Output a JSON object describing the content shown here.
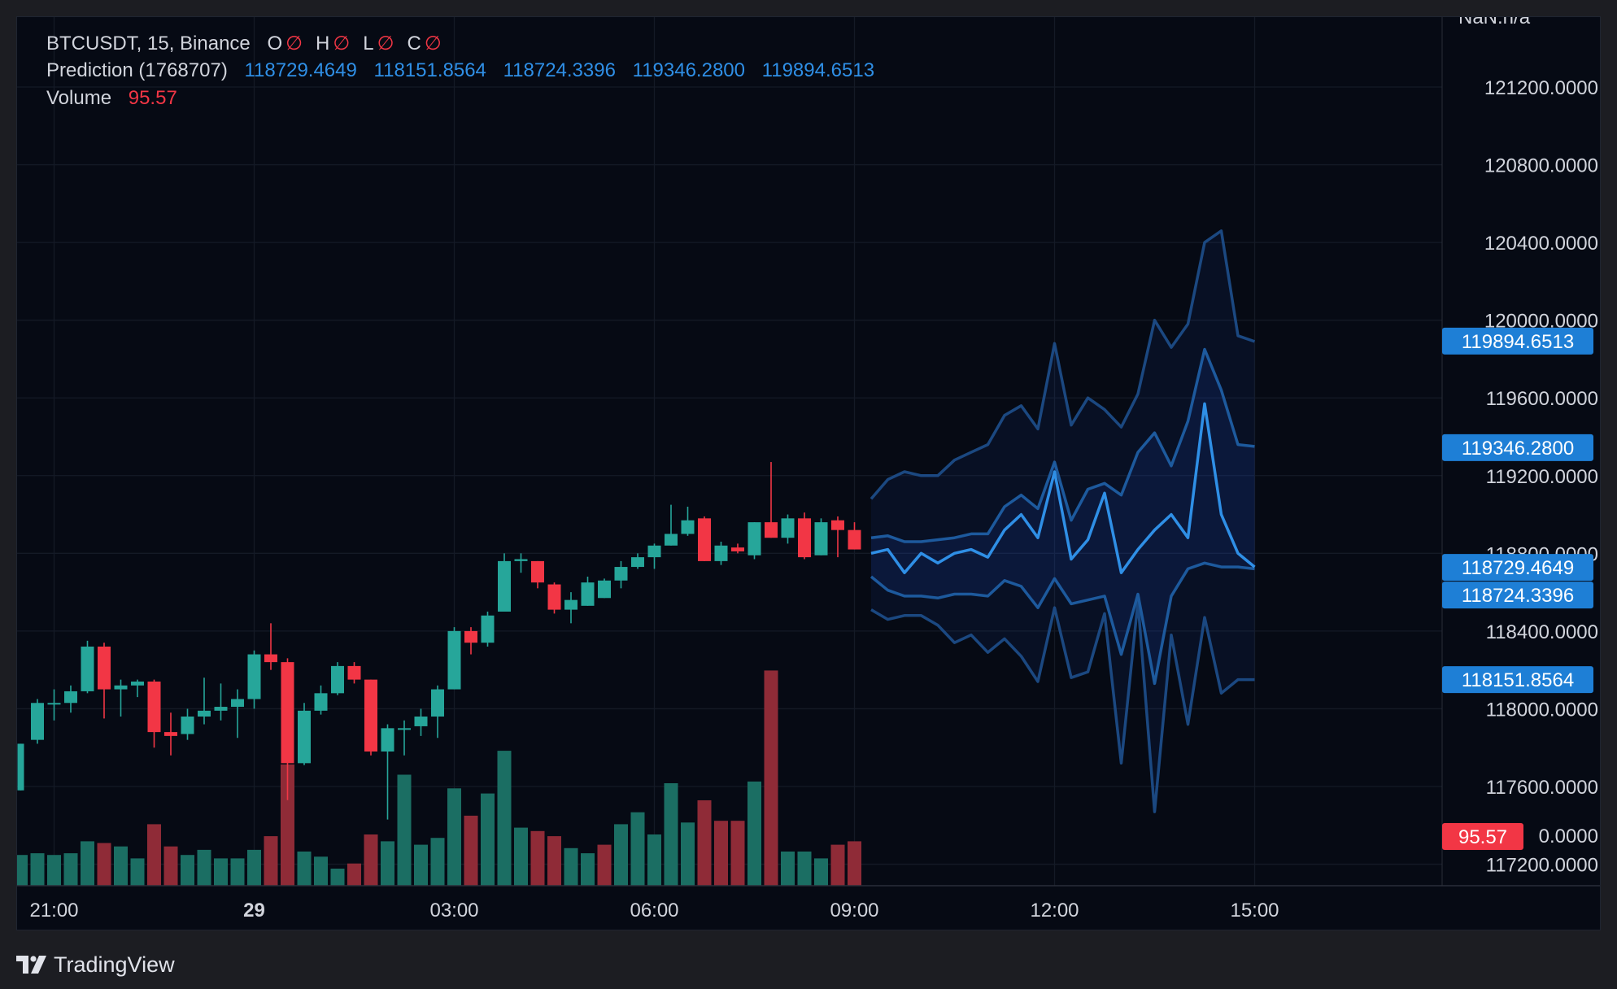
{
  "legend": {
    "symbol_line": "BTCUSDT, 15, Binance",
    "ohlc": [
      {
        "k": "O",
        "v": "∅"
      },
      {
        "k": "H",
        "v": "∅"
      },
      {
        "k": "L",
        "v": "∅"
      },
      {
        "k": "C",
        "v": "∅"
      }
    ],
    "prediction_label": "Prediction (1768707)",
    "prediction_values": [
      "118729.4649",
      "118151.8564",
      "118724.3396",
      "119346.2800",
      "119894.6513"
    ],
    "volume_label": "Volume",
    "volume_value": "95.57"
  },
  "brand": {
    "name": "TradingView"
  },
  "colors": {
    "up": "#26a69a",
    "down": "#f23645",
    "up_vol": "#1b6e63",
    "down_vol": "#8f2b37",
    "prediction": "#2f8fe6",
    "band": "#2962ff",
    "background": "#060a14"
  },
  "chart_data": {
    "type": "candlestick",
    "y_axis": {
      "ticks": [
        121200,
        120800,
        120400,
        120000,
        119600,
        119200,
        118800,
        118400,
        118000,
        117600,
        117200
      ],
      "tick_labels": [
        "121200.0000",
        "120800.0000",
        "120400.0000",
        "120000.0000",
        "119600.0000",
        "119200.0000",
        "118800.0000",
        "118400.0000",
        "118000.0000",
        "117600.0000",
        "117200.0000"
      ],
      "top_partial_label": "NaN.n/a",
      "volume_partial_label": "0.0000",
      "range": [
        116880,
        121560
      ]
    },
    "x_axis": {
      "ticks": [
        {
          "label": "21:00",
          "bar": 2
        },
        {
          "label": "29",
          "bar": 14
        },
        {
          "label": "03:00",
          "bar": 26
        },
        {
          "label": "06:00",
          "bar": 38
        },
        {
          "label": "09:00",
          "bar": 50
        },
        {
          "label": "12:00",
          "bar": 62
        },
        {
          "label": "15:00",
          "bar": 74
        }
      ]
    },
    "price_badges": [
      {
        "label": "119894.6513",
        "value": 119894.6513,
        "color": "#1e7fd6"
      },
      {
        "label": "119346.2800",
        "value": 119346.28,
        "color": "#1e7fd6"
      },
      {
        "label": "118729.4649",
        "value": 118729.4649,
        "color": "#1e7fd6"
      },
      {
        "label": "118724.3396",
        "value": 118724.3396,
        "color": "#1e7fd6"
      },
      {
        "label": "118151.8564",
        "value": 118151.8564,
        "color": "#1e7fd6"
      }
    ],
    "volume_badge": {
      "label": "95.57",
      "color": "#f23645"
    },
    "candles": [
      {
        "o": 117580,
        "h": 117820,
        "l": 117580,
        "c": 117820
      },
      {
        "o": 117840,
        "h": 118050,
        "l": 117820,
        "c": 118030
      },
      {
        "o": 118030,
        "h": 118100,
        "l": 117940,
        "c": 118030
      },
      {
        "o": 118030,
        "h": 118120,
        "l": 117980,
        "c": 118090
      },
      {
        "o": 118090,
        "h": 118350,
        "l": 118080,
        "c": 118320
      },
      {
        "o": 118320,
        "h": 118340,
        "l": 117950,
        "c": 118100
      },
      {
        "o": 118100,
        "h": 118150,
        "l": 117960,
        "c": 118120
      },
      {
        "o": 118120,
        "h": 118150,
        "l": 118060,
        "c": 118140
      },
      {
        "o": 118140,
        "h": 118150,
        "l": 117800,
        "c": 117880
      },
      {
        "o": 117880,
        "h": 117980,
        "l": 117760,
        "c": 117860
      },
      {
        "o": 117870,
        "h": 118000,
        "l": 117840,
        "c": 117960
      },
      {
        "o": 117960,
        "h": 118160,
        "l": 117920,
        "c": 117990
      },
      {
        "o": 117990,
        "h": 118130,
        "l": 117940,
        "c": 118010
      },
      {
        "o": 118010,
        "h": 118100,
        "l": 117850,
        "c": 118050
      },
      {
        "o": 118050,
        "h": 118300,
        "l": 118000,
        "c": 118280
      },
      {
        "o": 118280,
        "h": 118440,
        "l": 118200,
        "c": 118240
      },
      {
        "o": 118240,
        "h": 118260,
        "l": 117530,
        "c": 117720
      },
      {
        "o": 117720,
        "h": 118030,
        "l": 117710,
        "c": 117990
      },
      {
        "o": 117990,
        "h": 118120,
        "l": 117970,
        "c": 118080
      },
      {
        "o": 118080,
        "h": 118240,
        "l": 118070,
        "c": 118220
      },
      {
        "o": 118220,
        "h": 118240,
        "l": 118130,
        "c": 118150
      },
      {
        "o": 118150,
        "h": 118150,
        "l": 117760,
        "c": 117780
      },
      {
        "o": 117780,
        "h": 117920,
        "l": 117430,
        "c": 117900
      },
      {
        "o": 117900,
        "h": 117940,
        "l": 117760,
        "c": 117900
      },
      {
        "o": 117910,
        "h": 118000,
        "l": 117860,
        "c": 117960
      },
      {
        "o": 117960,
        "h": 118120,
        "l": 117850,
        "c": 118100
      },
      {
        "o": 118100,
        "h": 118420,
        "l": 118100,
        "c": 118400
      },
      {
        "o": 118400,
        "h": 118420,
        "l": 118280,
        "c": 118340
      },
      {
        "o": 118340,
        "h": 118500,
        "l": 118320,
        "c": 118480
      },
      {
        "o": 118500,
        "h": 118800,
        "l": 118500,
        "c": 118760
      },
      {
        "o": 118760,
        "h": 118800,
        "l": 118700,
        "c": 118770
      },
      {
        "o": 118760,
        "h": 118760,
        "l": 118620,
        "c": 118650
      },
      {
        "o": 118640,
        "h": 118650,
        "l": 118490,
        "c": 118510
      },
      {
        "o": 118510,
        "h": 118600,
        "l": 118440,
        "c": 118560
      },
      {
        "o": 118530,
        "h": 118680,
        "l": 118530,
        "c": 118650
      },
      {
        "o": 118570,
        "h": 118670,
        "l": 118570,
        "c": 118660
      },
      {
        "o": 118660,
        "h": 118760,
        "l": 118620,
        "c": 118730
      },
      {
        "o": 118730,
        "h": 118800,
        "l": 118720,
        "c": 118780
      },
      {
        "o": 118780,
        "h": 118850,
        "l": 118720,
        "c": 118840
      },
      {
        "o": 118840,
        "h": 119050,
        "l": 118840,
        "c": 118900
      },
      {
        "o": 118900,
        "h": 119040,
        "l": 118890,
        "c": 118970
      },
      {
        "o": 118980,
        "h": 118990,
        "l": 118760,
        "c": 118760
      },
      {
        "o": 118760,
        "h": 118860,
        "l": 118740,
        "c": 118840
      },
      {
        "o": 118830,
        "h": 118850,
        "l": 118800,
        "c": 118810
      },
      {
        "o": 118790,
        "h": 118960,
        "l": 118770,
        "c": 118960
      },
      {
        "o": 118960,
        "h": 119270,
        "l": 118880,
        "c": 118880
      },
      {
        "o": 118880,
        "h": 119000,
        "l": 118850,
        "c": 118980
      },
      {
        "o": 118980,
        "h": 119010,
        "l": 118770,
        "c": 118780
      },
      {
        "o": 118790,
        "h": 118980,
        "l": 118790,
        "c": 118960
      },
      {
        "o": 118970,
        "h": 118990,
        "l": 118780,
        "c": 118920
      },
      {
        "o": 118920,
        "h": 118960,
        "l": 118820,
        "c": 118820
      }
    ],
    "volumes": [
      {
        "v": 18,
        "d": 0
      },
      {
        "v": 19,
        "d": 0
      },
      {
        "v": 18,
        "d": 0
      },
      {
        "v": 19,
        "d": 0
      },
      {
        "v": 26,
        "d": 0
      },
      {
        "v": 25,
        "d": 1
      },
      {
        "v": 23,
        "d": 0
      },
      {
        "v": 16,
        "d": 0
      },
      {
        "v": 36,
        "d": 1
      },
      {
        "v": 23,
        "d": 1
      },
      {
        "v": 18,
        "d": 0
      },
      {
        "v": 21,
        "d": 0
      },
      {
        "v": 16,
        "d": 0
      },
      {
        "v": 16,
        "d": 0
      },
      {
        "v": 21,
        "d": 0
      },
      {
        "v": 29,
        "d": 1
      },
      {
        "v": 71,
        "d": 1
      },
      {
        "v": 20,
        "d": 0
      },
      {
        "v": 17,
        "d": 0
      },
      {
        "v": 10,
        "d": 0
      },
      {
        "v": 13,
        "d": 1
      },
      {
        "v": 30,
        "d": 1
      },
      {
        "v": 26,
        "d": 0
      },
      {
        "v": 65,
        "d": 0
      },
      {
        "v": 24,
        "d": 0
      },
      {
        "v": 28,
        "d": 0
      },
      {
        "v": 57,
        "d": 0
      },
      {
        "v": 41,
        "d": 1
      },
      {
        "v": 54,
        "d": 0
      },
      {
        "v": 79,
        "d": 0
      },
      {
        "v": 34,
        "d": 0
      },
      {
        "v": 32,
        "d": 1
      },
      {
        "v": 29,
        "d": 1
      },
      {
        "v": 22,
        "d": 0
      },
      {
        "v": 19,
        "d": 0
      },
      {
        "v": 24,
        "d": 1
      },
      {
        "v": 36,
        "d": 0
      },
      {
        "v": 43,
        "d": 0
      },
      {
        "v": 30,
        "d": 0
      },
      {
        "v": 60,
        "d": 0
      },
      {
        "v": 37,
        "d": 0
      },
      {
        "v": 50,
        "d": 1
      },
      {
        "v": 38,
        "d": 1
      },
      {
        "v": 38,
        "d": 1
      },
      {
        "v": 61,
        "d": 0
      },
      {
        "v": 126,
        "d": 1
      },
      {
        "v": 20,
        "d": 0
      },
      {
        "v": 20,
        "d": 0
      },
      {
        "v": 16,
        "d": 0
      },
      {
        "v": 24,
        "d": 1
      },
      {
        "v": 26,
        "d": 1
      }
    ],
    "prediction": {
      "start_bar": 51,
      "center": [
        118800,
        118820,
        118700,
        118800,
        118750,
        118800,
        118820,
        118780,
        118920,
        119000,
        118880,
        119220,
        118770,
        118870,
        119110,
        118700,
        118820,
        118920,
        119000,
        118880,
        119570,
        119000,
        118800,
        118730
      ],
      "upper_outer": [
        119080,
        119180,
        119220,
        119200,
        119200,
        119280,
        119320,
        119360,
        119510,
        119560,
        119440,
        119880,
        119460,
        119600,
        119540,
        119450,
        119620,
        120000,
        119860,
        119980,
        120400,
        120460,
        119920,
        119890
      ],
      "lower_outer": [
        118510,
        118460,
        118480,
        118480,
        118430,
        118340,
        118380,
        118290,
        118360,
        118270,
        118140,
        118520,
        118160,
        118190,
        118490,
        117720,
        118550,
        117470,
        118380,
        117920,
        118470,
        118080,
        118150,
        118150
      ],
      "upper_inner": [
        118880,
        118890,
        118860,
        118860,
        118870,
        118880,
        118900,
        118900,
        119040,
        119100,
        119030,
        119270,
        118970,
        119130,
        119160,
        119100,
        119320,
        119420,
        119250,
        119480,
        119850,
        119640,
        119360,
        119350
      ],
      "lower_inner": [
        118680,
        118610,
        118580,
        118580,
        118570,
        118590,
        118590,
        118580,
        118660,
        118630,
        118520,
        118670,
        118540,
        118560,
        118580,
        118280,
        118590,
        118130,
        118580,
        118720,
        118750,
        118730,
        118730,
        118720
      ]
    }
  }
}
